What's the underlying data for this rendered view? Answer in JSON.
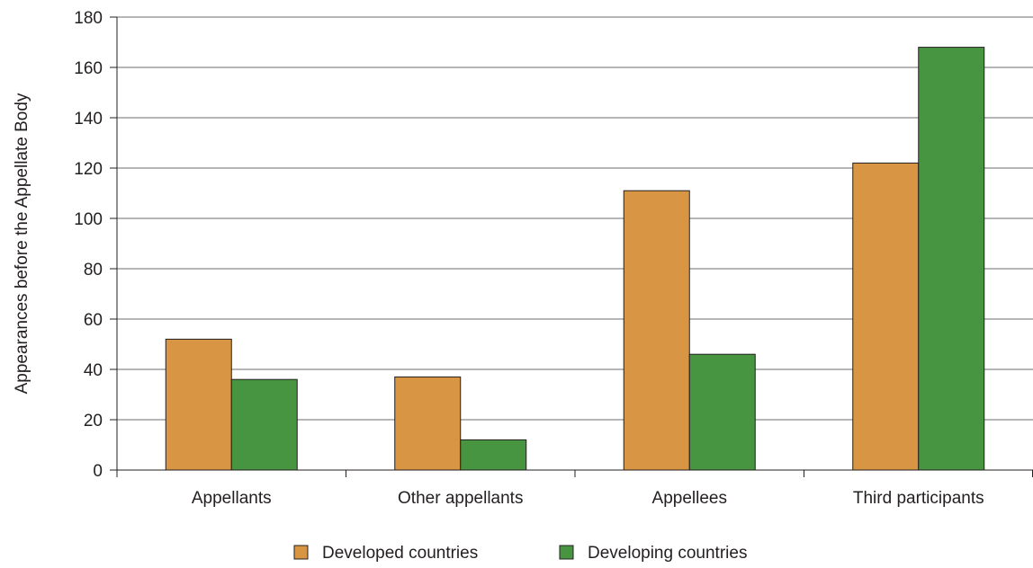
{
  "chart_data": {
    "type": "bar",
    "title": "",
    "xlabel": "",
    "ylabel": "Appearances before the Appellate Body",
    "categories": [
      "Appellants",
      "Other appellants",
      "Appellees",
      "Third participants"
    ],
    "series": [
      {
        "name": "Developed countries",
        "color": "#d89543",
        "values": [
          52,
          37,
          111,
          122
        ]
      },
      {
        "name": "Developing countries",
        "color": "#479441",
        "values": [
          36,
          12,
          46,
          168
        ]
      }
    ],
    "ylim": [
      0,
      180
    ],
    "yticks": [
      "0",
      "20",
      "40",
      "60",
      "80",
      "100",
      "120",
      "140",
      "160",
      "180"
    ],
    "grid": true,
    "legend_position": "bottom"
  }
}
